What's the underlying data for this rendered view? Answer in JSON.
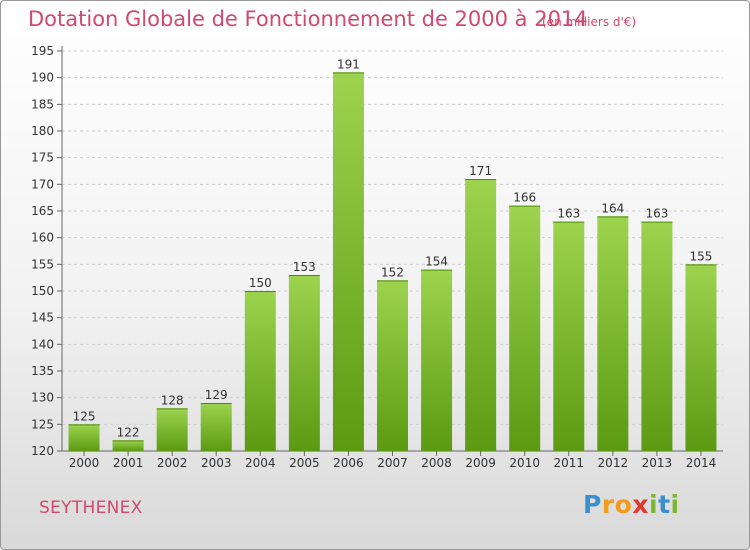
{
  "title": "Dotation Globale de Fonctionnement de 2000 à 2014",
  "unit_note": "(en milliers d'€)",
  "commune": "SEYTHENEX",
  "logo": {
    "text": "Proxiti",
    "letters": [
      "P",
      "r",
      "o",
      "x",
      "i",
      "t",
      "i"
    ],
    "colors": [
      "#3a8fd0",
      "#f39b1d",
      "#f39b1d",
      "#e2392f",
      "#7bb832",
      "#3a8fd0",
      "#7bb832"
    ]
  },
  "colors": {
    "bar_top": "#9dd34f",
    "bar_bottom": "#5c9a12",
    "accent": "#d2486e"
  },
  "chart_data": {
    "type": "bar",
    "categories": [
      "2000",
      "2001",
      "2002",
      "2003",
      "2004",
      "2005",
      "2006",
      "2007",
      "2008",
      "2009",
      "2010",
      "2011",
      "2012",
      "2013",
      "2014"
    ],
    "values": [
      125,
      122,
      128,
      129,
      150,
      153,
      191,
      152,
      154,
      171,
      166,
      163,
      164,
      163,
      155
    ],
    "ylim": [
      120,
      195
    ],
    "yticks": [
      120,
      125,
      130,
      135,
      140,
      145,
      150,
      155,
      160,
      165,
      170,
      175,
      180,
      185,
      190,
      195
    ],
    "grid": true,
    "title": "Dotation Globale de Fonctionnement de 2000 à 2014",
    "xlabel": "",
    "ylabel": ""
  }
}
